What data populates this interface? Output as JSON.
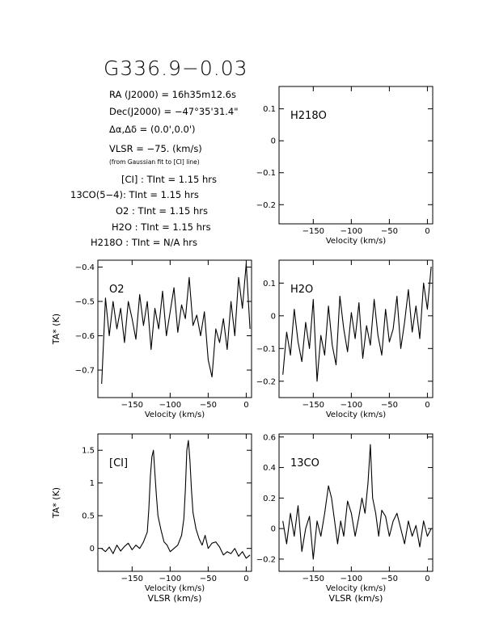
{
  "figure": {
    "title": "G336.9−0.03",
    "info_lines": [
      {
        "text": "RA (J2000) = 16h35m12.6s"
      },
      {
        "text": "Dec(J2000) = −47°35'31.4\""
      },
      {
        "text": "Δα,Δδ = (0.0',0.0')"
      },
      {
        "text": "VLSR = −75. (km/s)"
      },
      {
        "text": "(from Gaussian fit to [CI] line)"
      },
      {
        "text": "[CI] : TInt = 1.15 hrs"
      },
      {
        "text": "13CO(5−4): TInt = 1.15 hrs"
      },
      {
        "text": "O2 : TInt = 1.15 hrs"
      },
      {
        "text": "H2O : TInt = 1.15 hrs"
      },
      {
        "text": "H218O : TInt = N/A hrs"
      }
    ]
  },
  "chart_data": [
    {
      "type": "line",
      "panel_label": "H218O",
      "xlabel": "Velocity (km/s)",
      "ylabel": "",
      "xlim": [
        -195,
        7
      ],
      "ylim": [
        -0.26,
        0.17
      ],
      "xticks": [
        -150,
        -100,
        -50,
        0
      ],
      "yticks": [
        0.1,
        0,
        -0.1,
        -0.2
      ],
      "series": []
    },
    {
      "type": "line",
      "panel_label": "O2",
      "xlabel": "Velocity (km/s)",
      "ylabel": "TA* (K)",
      "xlim": [
        -195,
        7
      ],
      "ylim": [
        -0.78,
        -0.38
      ],
      "xticks": [
        -150,
        -100,
        -50,
        0
      ],
      "yticks": [
        -0.4,
        -0.5,
        -0.6,
        -0.7
      ],
      "series": [
        {
          "x": [
            -190,
            -185,
            -180,
            -175,
            -170,
            -165,
            -160,
            -155,
            -150,
            -145,
            -140,
            -135,
            -130,
            -125,
            -120,
            -115,
            -110,
            -105,
            -100,
            -95,
            -90,
            -85,
            -80,
            -75,
            -70,
            -65,
            -60,
            -55,
            -50,
            -45,
            -40,
            -35,
            -30,
            -25,
            -20,
            -15,
            -10,
            -5,
            0,
            5
          ],
          "y": [
            -0.74,
            -0.49,
            -0.6,
            -0.5,
            -0.58,
            -0.52,
            -0.62,
            -0.5,
            -0.55,
            -0.61,
            -0.48,
            -0.57,
            -0.5,
            -0.64,
            -0.52,
            -0.58,
            -0.47,
            -0.6,
            -0.53,
            -0.46,
            -0.59,
            -0.51,
            -0.55,
            -0.43,
            -0.57,
            -0.54,
            -0.6,
            -0.53,
            -0.67,
            -0.72,
            -0.58,
            -0.62,
            -0.55,
            -0.64,
            -0.5,
            -0.6,
            -0.43,
            -0.52,
            -0.39,
            -0.58
          ]
        }
      ]
    },
    {
      "type": "line",
      "panel_label": "H2O",
      "xlabel": "Velocity (km/s)",
      "ylabel": "",
      "xlim": [
        -195,
        7
      ],
      "ylim": [
        -0.25,
        0.17
      ],
      "xticks": [
        -150,
        -100,
        -50,
        0
      ],
      "yticks": [
        0.1,
        0,
        -0.1,
        -0.2
      ],
      "series": [
        {
          "x": [
            -190,
            -185,
            -180,
            -175,
            -170,
            -165,
            -160,
            -155,
            -150,
            -145,
            -140,
            -135,
            -130,
            -125,
            -120,
            -115,
            -110,
            -105,
            -100,
            -95,
            -90,
            -85,
            -80,
            -75,
            -70,
            -65,
            -60,
            -55,
            -50,
            -45,
            -40,
            -35,
            -30,
            -25,
            -20,
            -15,
            -10,
            -5,
            0,
            5
          ],
          "y": [
            -0.18,
            -0.05,
            -0.12,
            0.02,
            -0.08,
            -0.14,
            -0.02,
            -0.1,
            0.05,
            -0.2,
            -0.06,
            -0.12,
            0.03,
            -0.09,
            -0.15,
            0.06,
            -0.04,
            -0.11,
            0.01,
            -0.07,
            0.04,
            -0.13,
            -0.03,
            -0.09,
            0.05,
            -0.06,
            -0.12,
            0.02,
            -0.08,
            -0.04,
            0.06,
            -0.1,
            -0.02,
            0.08,
            -0.05,
            0.03,
            -0.07,
            0.1,
            0.02,
            0.15
          ]
        }
      ]
    },
    {
      "type": "line",
      "panel_label": "[CI]",
      "xlabel": "Velocity (km/s)",
      "xlabel2": "VLSR (km/s)",
      "ylabel": "TA* (K)",
      "xlim": [
        -195,
        7
      ],
      "ylim": [
        -0.35,
        1.75
      ],
      "xticks": [
        -150,
        -100,
        -50,
        0
      ],
      "yticks": [
        1.5,
        1,
        0.5,
        0
      ],
      "series": [
        {
          "x": [
            -190,
            -185,
            -180,
            -175,
            -170,
            -165,
            -160,
            -155,
            -150,
            -145,
            -140,
            -135,
            -130,
            -128,
            -126,
            -124,
            -122,
            -120,
            -118,
            -116,
            -112,
            -108,
            -104,
            -100,
            -95,
            -90,
            -85,
            -82,
            -80,
            -78,
            -76,
            -74,
            -72,
            -70,
            -66,
            -62,
            -58,
            -54,
            -50,
            -45,
            -40,
            -35,
            -30,
            -25,
            -20,
            -15,
            -10,
            -5,
            0,
            5
          ],
          "y": [
            0.0,
            -0.05,
            0.02,
            -0.08,
            0.05,
            -0.04,
            0.03,
            0.08,
            -0.02,
            0.05,
            0.0,
            0.1,
            0.25,
            0.6,
            1.1,
            1.4,
            1.5,
            1.15,
            0.8,
            0.5,
            0.28,
            0.1,
            0.05,
            -0.05,
            0.0,
            0.05,
            0.2,
            0.45,
            0.9,
            1.5,
            1.65,
            1.35,
            0.9,
            0.55,
            0.3,
            0.15,
            0.05,
            0.2,
            0.0,
            0.08,
            0.1,
            0.02,
            -0.1,
            -0.05,
            -0.08,
            0.0,
            -0.12,
            -0.05,
            -0.15,
            -0.1
          ]
        }
      ]
    },
    {
      "type": "line",
      "panel_label": "13CO",
      "xlabel": "Velocity (km/s)",
      "xlabel2": "VLSR (km/s)",
      "ylabel": "",
      "xlim": [
        -195,
        7
      ],
      "ylim": [
        -0.28,
        0.62
      ],
      "xticks": [
        -150,
        -100,
        -50,
        0
      ],
      "yticks": [
        0.6,
        0.4,
        0.2,
        0,
        -0.2
      ],
      "series": [
        {
          "x": [
            -190,
            -185,
            -180,
            -175,
            -170,
            -165,
            -160,
            -155,
            -150,
            -145,
            -140,
            -135,
            -130,
            -126,
            -122,
            -118,
            -114,
            -110,
            -105,
            -100,
            -95,
            -90,
            -86,
            -82,
            -78,
            -75,
            -72,
            -68,
            -64,
            -60,
            -55,
            -50,
            -45,
            -40,
            -35,
            -30,
            -25,
            -20,
            -15,
            -10,
            -5,
            0,
            5
          ],
          "y": [
            0.05,
            -0.1,
            0.1,
            -0.05,
            0.15,
            -0.15,
            0.0,
            0.08,
            -0.2,
            0.05,
            -0.05,
            0.1,
            0.28,
            0.2,
            0.05,
            -0.1,
            0.05,
            -0.05,
            0.18,
            0.1,
            -0.05,
            0.08,
            0.2,
            0.1,
            0.3,
            0.55,
            0.2,
            0.1,
            -0.05,
            0.12,
            0.08,
            -0.05,
            0.05,
            0.1,
            0.0,
            -0.1,
            0.05,
            -0.05,
            0.02,
            -0.12,
            0.05,
            -0.05,
            0.0
          ]
        }
      ]
    }
  ]
}
